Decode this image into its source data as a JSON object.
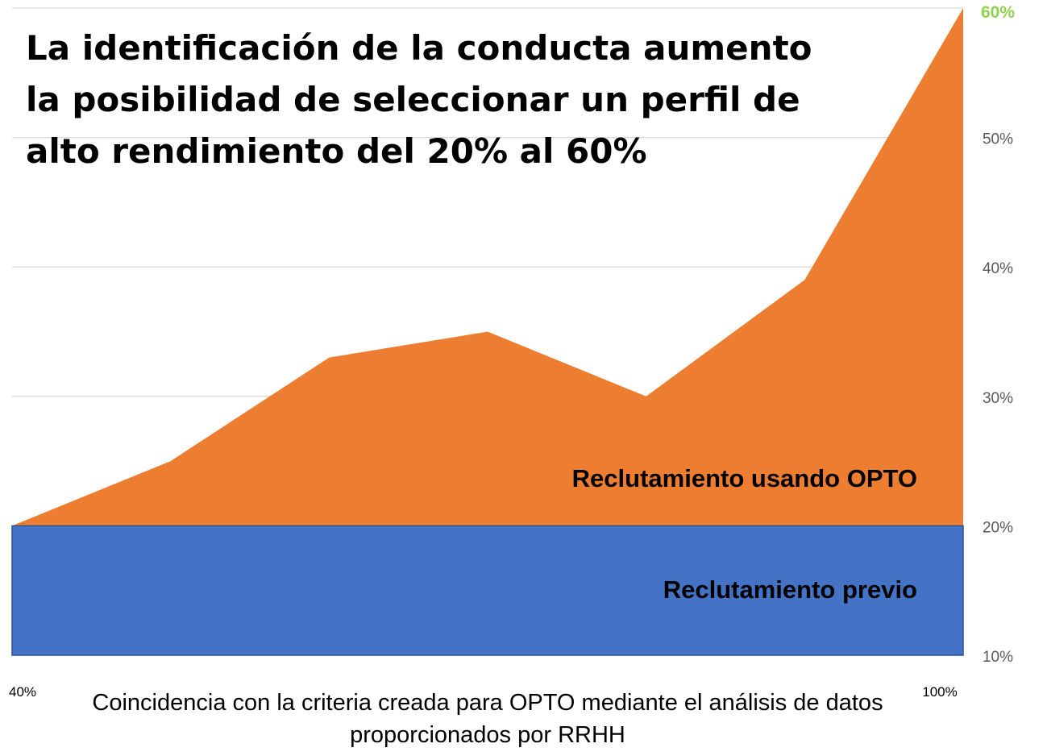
{
  "chart_data": {
    "type": "area",
    "title": "La identificación de la conducta aumento la posibilidad de seleccionar un perfil de alto rendimiento del 20% al 60%",
    "title_lines": [
      "La identificación de la conducta aumento",
      "la posibilidad de seleccionar un perfil de",
      "alto rendimiento del 20% al 60%"
    ],
    "xlabel": "Coincidencia con la criteria creada para OPTO mediante el análisis de datos proporcionados por RRHH",
    "x_tick_labels": [
      "40%",
      "100%"
    ],
    "x": [
      40,
      50,
      60,
      70,
      80,
      90,
      100
    ],
    "ylim": [
      10,
      60
    ],
    "y_ticks": [
      10,
      20,
      30,
      40,
      50,
      60
    ],
    "y_tick_labels": [
      "10%",
      "20%",
      "30%",
      "40%",
      "50%",
      "60%"
    ],
    "highlight_tick": "60%",
    "highlight_color": "#92D050",
    "grid": true,
    "series": [
      {
        "name": "Reclutamiento previo",
        "values": [
          20,
          20,
          20,
          20,
          20,
          20,
          20
        ],
        "color": "#4472C4"
      },
      {
        "name": "Reclutamiento usando OPTO",
        "values": [
          20,
          25,
          33,
          35,
          30,
          39,
          60
        ],
        "color": "#ED7D31"
      }
    ]
  }
}
